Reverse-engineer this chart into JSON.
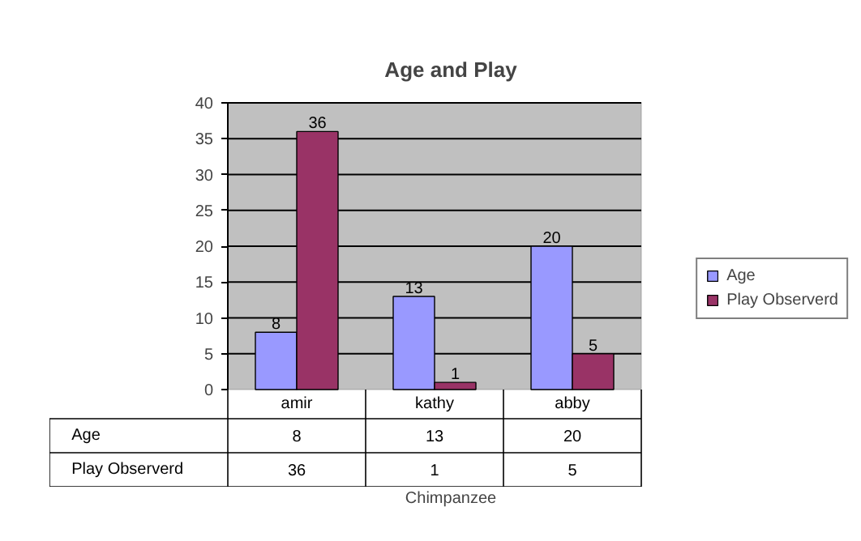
{
  "chart_data": {
    "type": "bar",
    "title": "Age and Play",
    "xlabel": "Chimpanzee",
    "categories": [
      "amir",
      "kathy",
      "abby"
    ],
    "series": [
      {
        "name": "Age",
        "color": "#9999ff",
        "values": [
          8,
          13,
          20
        ],
        "value_labels": [
          "8",
          "13",
          "20"
        ]
      },
      {
        "name": "Play Observerd",
        "color": "#993366",
        "values": [
          36,
          1,
          5
        ],
        "value_labels": [
          "36",
          "1",
          "5"
        ]
      }
    ],
    "annotations": [
      "8",
      "13",
      "20",
      "36",
      "1",
      "5"
    ],
    "ylim": [
      0,
      40
    ],
    "yticks": [
      0,
      5,
      10,
      15,
      20,
      25,
      30,
      35,
      40
    ],
    "grid": "y",
    "legend": "right",
    "data_labels": true
  }
}
